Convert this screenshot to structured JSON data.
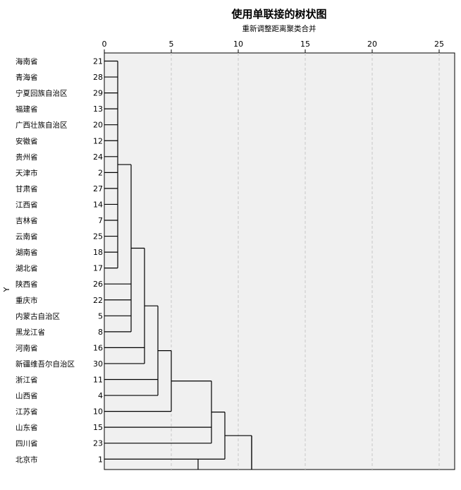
{
  "chart_data": {
    "type": "dendrogram",
    "title": "使用单联接的树状图",
    "subtitle": "重新调整距离聚类合并",
    "ylabel": "Y",
    "xlim": [
      0,
      25
    ],
    "x_ticks": [
      0,
      5,
      10,
      15,
      20,
      25
    ],
    "grid": true,
    "leaves": [
      {
        "label": "海南省",
        "case": "21"
      },
      {
        "label": "青海省",
        "case": "28"
      },
      {
        "label": "宁夏回族自治区",
        "case": "29"
      },
      {
        "label": "福建省",
        "case": "13"
      },
      {
        "label": "广西壮族自治区",
        "case": "20"
      },
      {
        "label": "安徽省",
        "case": "12"
      },
      {
        "label": "贵州省",
        "case": "24"
      },
      {
        "label": "天津市",
        "case": "2"
      },
      {
        "label": "甘肃省",
        "case": "27"
      },
      {
        "label": "江西省",
        "case": "14"
      },
      {
        "label": "吉林省",
        "case": "7"
      },
      {
        "label": "云南省",
        "case": "25"
      },
      {
        "label": "湖南省",
        "case": "18"
      },
      {
        "label": "湖北省",
        "case": "17"
      },
      {
        "label": "陕西省",
        "case": "26"
      },
      {
        "label": "重庆市",
        "case": "22"
      },
      {
        "label": "内蒙古自治区",
        "case": "5"
      },
      {
        "label": "黑龙江省",
        "case": "8"
      },
      {
        "label": "河南省",
        "case": "16"
      },
      {
        "label": "新疆维吾尔自治区",
        "case": "30"
      },
      {
        "label": "浙江省",
        "case": "11"
      },
      {
        "label": "山西省",
        "case": "4"
      },
      {
        "label": "江苏省",
        "case": "10"
      },
      {
        "label": "山东省",
        "case": "15"
      },
      {
        "label": "四川省",
        "case": "23"
      },
      {
        "label": "北京市",
        "case": "1"
      }
    ],
    "merges": [
      {
        "members": [
          0,
          1,
          2,
          3,
          4,
          5,
          6,
          7,
          8,
          9,
          10,
          11,
          12,
          13
        ],
        "distance": 1
      },
      {
        "members": [
          "m0",
          14,
          15,
          16,
          17
        ],
        "distance": 2
      },
      {
        "members": [
          "m1",
          18,
          19
        ],
        "distance": 3
      },
      {
        "members": [
          "m2",
          20,
          21
        ],
        "distance": 4
      },
      {
        "members": [
          "m3",
          22
        ],
        "distance": 5
      },
      {
        "members": [
          "m4",
          23,
          24
        ],
        "distance": 8
      },
      {
        "members": [
          25
        ],
        "distance": 7
      },
      {
        "members": [
          "m5",
          "m6"
        ],
        "distance": 9
      },
      {
        "members": [
          "m7"
        ],
        "distance": 11
      }
    ],
    "colors": {
      "plot_bg": "#f0f0f0",
      "line": "#000000",
      "grid": "#c8c8c8",
      "text": "#000000"
    }
  }
}
